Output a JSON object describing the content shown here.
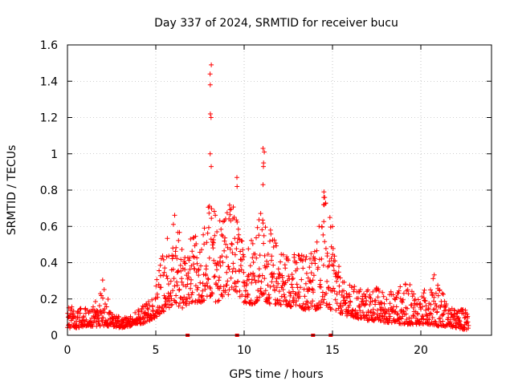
{
  "chart_data": {
    "type": "scatter",
    "title": "Day 337 of 2024, SRMTID for receiver bucu",
    "xlabel": "GPS time / hours",
    "ylabel": "SRMTID / TECUs",
    "xlim": [
      0,
      24
    ],
    "ylim": [
      0,
      1.6
    ],
    "x_ticks": [
      0,
      5,
      10,
      15,
      20
    ],
    "x_tick_labels": [
      "0",
      "5",
      "10",
      "15",
      "20"
    ],
    "y_ticks": [
      0,
      0.2,
      0.4,
      0.6,
      0.8,
      1.0,
      1.2,
      1.4,
      1.6
    ],
    "y_tick_labels": [
      "0",
      "0.2",
      "0.4",
      "0.6",
      "0.8",
      "1",
      "1.2",
      "1.4",
      "1.6"
    ],
    "grid": true,
    "marker": "+",
    "marker_color": "#ff0000",
    "series": [
      {
        "name": "SRMTID",
        "envelope_hours": [
          0,
          0.5,
          1,
          1.5,
          2,
          2.5,
          3,
          3.5,
          4,
          4.5,
          5,
          5.5,
          6,
          6.5,
          7,
          7.5,
          8,
          8.5,
          9,
          9.5,
          10,
          10.5,
          11,
          11.5,
          12,
          12.5,
          13,
          13.5,
          14,
          14.5,
          15,
          15.5,
          16,
          16.5,
          17,
          17.5,
          18,
          18.5,
          19,
          19.5,
          20,
          20.5,
          21,
          21.5,
          22,
          22.5
        ],
        "envelope_low": [
          0.04,
          0.04,
          0.05,
          0.05,
          0.05,
          0.05,
          0.04,
          0.05,
          0.06,
          0.07,
          0.1,
          0.13,
          0.17,
          0.15,
          0.18,
          0.18,
          0.2,
          0.18,
          0.22,
          0.24,
          0.18,
          0.17,
          0.2,
          0.17,
          0.17,
          0.16,
          0.15,
          0.14,
          0.14,
          0.16,
          0.13,
          0.12,
          0.1,
          0.09,
          0.08,
          0.08,
          0.07,
          0.07,
          0.06,
          0.06,
          0.06,
          0.06,
          0.05,
          0.05,
          0.04,
          0.03
        ],
        "envelope_high": [
          0.22,
          0.12,
          0.18,
          0.16,
          0.32,
          0.12,
          0.1,
          0.1,
          0.14,
          0.18,
          0.3,
          0.5,
          0.72,
          0.52,
          0.55,
          0.55,
          0.75,
          0.7,
          0.73,
          0.72,
          0.48,
          0.62,
          0.7,
          0.58,
          0.5,
          0.46,
          0.46,
          0.46,
          0.52,
          0.8,
          0.6,
          0.3,
          0.28,
          0.27,
          0.26,
          0.27,
          0.24,
          0.25,
          0.29,
          0.28,
          0.2,
          0.34,
          0.34,
          0.16,
          0.14,
          0.15
        ],
        "spikes": [
          {
            "x": 8.1,
            "y": [
              0.93,
              1.0,
              1.2,
              1.22,
              1.38,
              1.44,
              1.49
            ]
          },
          {
            "x": 9.6,
            "y": [
              0.82,
              0.87
            ]
          },
          {
            "x": 11.1,
            "y": [
              0.83,
              0.93,
              0.95,
              1.01,
              1.03
            ]
          },
          {
            "x": 14.5,
            "y": [
              0.72,
              0.76,
              0.79
            ]
          }
        ],
        "zero_markers_x": [
          6.8,
          9.6,
          13.9,
          14.9
        ]
      }
    ]
  }
}
